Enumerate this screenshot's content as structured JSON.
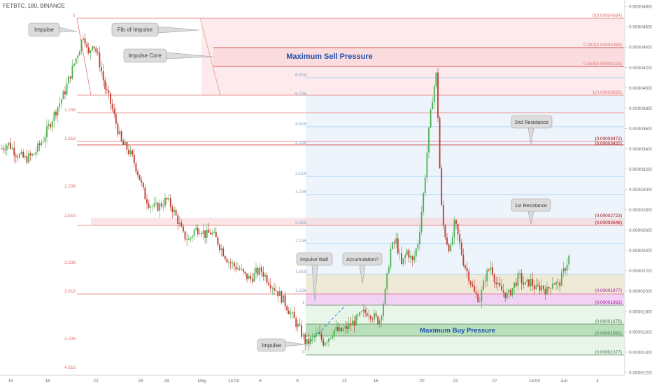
{
  "header": {
    "symbol_line": "FETBTC, 180, BINANCE"
  },
  "colors": {
    "up": "#4caf50",
    "down": "#c0392b",
    "sell_line": "#e57373",
    "blue_line": "#90caf9",
    "sell_zone": "#f8d0d4",
    "buy_zone": "#a5d6a7",
    "right_band": "#eef4fb",
    "pink_band": "#f5b6ee",
    "tan_band": "#efe6c8",
    "zone_title": "#1e4fb0"
  },
  "callouts": {
    "impulse_top": "Impulse",
    "fib_of_impulse": "Fib of Impulse",
    "impulse_core": "Impulse Core",
    "second_resistance": "2nd Resistance",
    "first_resistance": "1st Resistance",
    "impulse_wall": "Impulse Wall",
    "accumulation": "Accumulation?",
    "impulse_bottom": "Impulse"
  },
  "zones": {
    "sell": "Maximum Sell Pressure",
    "buy": "Maximum Buy Pressure"
  },
  "fib_right": [
    "0(0.00004684)",
    "0.382(0.00004398)",
    "0.618(0.00004221)",
    "1(0.00003935)",
    "(0.00003472)",
    "(0.00003432)",
    "(0.00002723)",
    "(0.00002648)",
    "(0.00001977)",
    "(0.00001863)",
    "(0.00001676)",
    "(0.00001562)",
    "(0.00001377)"
  ],
  "fib_left": [
    "0",
    "1.236",
    "1.618",
    "2.236",
    "2.618",
    "3.236",
    "3.618",
    "4.236",
    "4.618"
  ],
  "fib_mid": [
    "6.618",
    "5.236",
    "4.618",
    "4.236",
    "3.618",
    "3.236",
    "2.618",
    "2.236",
    "1.618",
    "1.236",
    "1",
    "0"
  ],
  "chart_data": {
    "type": "candlestick",
    "title": "FETBTC, 180, BINANCE",
    "y_axis": {
      "ticks": [
        "0.00004800",
        "0.00004600",
        "0.00004400",
        "0.00004200",
        "0.00004000",
        "0.00003800",
        "0.00003600",
        "0.00003400",
        "0.00003200",
        "0.00003000",
        "0.00002800",
        "0.00002600",
        "0.00002400",
        "0.00002200",
        "0.00002000",
        "0.00001800",
        "0.00001600",
        "0.00001400",
        "0.00001200"
      ],
      "range": [
        1.18e-05,
        4.83e-05
      ]
    },
    "x_axis": {
      "ticks": [
        "15",
        "18",
        "22",
        "25",
        "28",
        "May",
        "14:00",
        "6",
        "9",
        "13",
        "16",
        "20",
        "23",
        "27",
        "14:00",
        "Jun",
        "4"
      ]
    },
    "price_path": [
      [
        0,
        3.4e-05
      ],
      [
        12,
        3.45e-05
      ],
      [
        24,
        3.35e-05
      ],
      [
        36,
        3.3e-05
      ],
      [
        48,
        3.34e-05
      ],
      [
        62,
        3.5e-05
      ],
      [
        78,
        3.75e-05
      ],
      [
        92,
        3.95e-05
      ],
      [
        104,
        4.2e-05
      ],
      [
        114,
        4.4e-05
      ],
      [
        120,
        4.55e-05
      ],
      [
        126,
        4.3e-05
      ],
      [
        132,
        4.45e-05
      ],
      [
        138,
        4.35e-05
      ],
      [
        144,
        4.2e-05
      ],
      [
        150,
        4e-05
      ],
      [
        158,
        3.85e-05
      ],
      [
        166,
        3.65e-05
      ],
      [
        174,
        3.45e-05
      ],
      [
        182,
        3.4e-05
      ],
      [
        190,
        3.3e-05
      ],
      [
        198,
        3.15e-05
      ],
      [
        206,
        2.95e-05
      ],
      [
        214,
        2.85e-05
      ],
      [
        222,
        2.82e-05
      ],
      [
        230,
        2.85e-05
      ],
      [
        238,
        2.9e-05
      ],
      [
        246,
        2.82e-05
      ],
      [
        254,
        2.7e-05
      ],
      [
        262,
        2.55e-05
      ],
      [
        270,
        2.5e-05
      ],
      [
        278,
        2.6e-05
      ],
      [
        286,
        2.62e-05
      ],
      [
        294,
        2.55e-05
      ],
      [
        302,
        2.58e-05
      ],
      [
        310,
        2.5e-05
      ],
      [
        318,
        2.4e-05
      ],
      [
        326,
        2.3e-05
      ],
      [
        334,
        2.25e-05
      ],
      [
        342,
        2.22e-05
      ],
      [
        350,
        2.15e-05
      ],
      [
        358,
        2.12e-05
      ],
      [
        366,
        2.18e-05
      ],
      [
        374,
        2.2e-05
      ],
      [
        382,
        2.12e-05
      ],
      [
        390,
        2.05e-05
      ],
      [
        398,
        1.98e-05
      ],
      [
        406,
        1.9e-05
      ],
      [
        414,
        1.8e-05
      ],
      [
        422,
        1.7e-05
      ],
      [
        430,
        1.6e-05
      ],
      [
        438,
        1.48e-05
      ],
      [
        446,
        1.53e-05
      ],
      [
        454,
        1.58e-05
      ],
      [
        462,
        1.5e-05
      ],
      [
        470,
        1.55e-05
      ],
      [
        478,
        1.62e-05
      ],
      [
        486,
        1.6e-05
      ],
      [
        494,
        1.63e-05
      ],
      [
        502,
        1.68e-05
      ],
      [
        510,
        1.72e-05
      ],
      [
        518,
        1.78e-05
      ],
      [
        526,
        1.8e-05
      ],
      [
        534,
        1.75e-05
      ],
      [
        542,
        1.7e-05
      ],
      [
        550,
        1.95e-05
      ],
      [
        558,
        2.4e-05
      ],
      [
        566,
        2.5e-05
      ],
      [
        574,
        2.25e-05
      ],
      [
        582,
        2.4e-05
      ],
      [
        590,
        2.28e-05
      ],
      [
        598,
        2.5e-05
      ],
      [
        606,
        3e-05
      ],
      [
        612,
        3.5e-05
      ],
      [
        618,
        3.9e-05
      ],
      [
        624,
        4.15e-05
      ],
      [
        628,
        3.3e-05
      ],
      [
        632,
        2.7e-05
      ],
      [
        638,
        2.5e-05
      ],
      [
        644,
        2.4e-05
      ],
      [
        650,
        2.68e-05
      ],
      [
        656,
        2.5e-05
      ],
      [
        662,
        2.3e-05
      ],
      [
        670,
        2.15e-05
      ],
      [
        678,
        1.98e-05
      ],
      [
        686,
        1.92e-05
      ],
      [
        694,
        2.15e-05
      ],
      [
        702,
        2.25e-05
      ],
      [
        710,
        2.05e-05
      ],
      [
        718,
        2e-05
      ],
      [
        726,
        1.95e-05
      ],
      [
        734,
        2.05e-05
      ],
      [
        742,
        2.15e-05
      ],
      [
        750,
        2.05e-05
      ],
      [
        758,
        2.1e-05
      ],
      [
        766,
        2.02e-05
      ],
      [
        774,
        2.05e-05
      ],
      [
        782,
        2e-05
      ],
      [
        790,
        2.1e-05
      ],
      [
        798,
        2.05e-05
      ],
      [
        806,
        2.2e-05
      ],
      [
        814,
        2.35e-05
      ]
    ]
  }
}
